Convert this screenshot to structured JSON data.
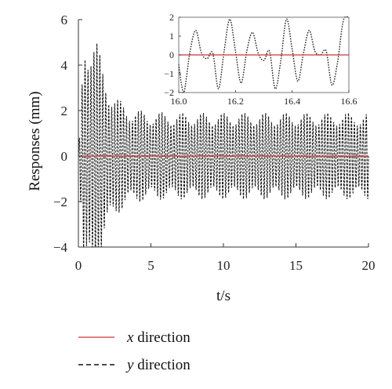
{
  "chart_data": [
    {
      "type": "line",
      "xlabel": "t/s",
      "ylabel": "Responses (mm)",
      "xlim": [
        0,
        20
      ],
      "ylim": [
        -4,
        6
      ],
      "xticks": [
        "0",
        "5",
        "10",
        "15",
        "20"
      ],
      "yticks": [
        "−4",
        "−2",
        "0",
        "2",
        "4",
        "6"
      ],
      "grid": false,
      "legend_position": "bottom-left",
      "series": [
        {
          "name": "x direction",
          "color": "#cc3333",
          "dash": "solid",
          "x": [
            0,
            20
          ],
          "y": [
            0,
            0
          ]
        },
        {
          "name": "y direction",
          "color": "#111111",
          "dash": "dashed",
          "description_values": {
            "peak_max": 5.4,
            "peak_min": -4.0,
            "steady_amplitude": 1.9,
            "steady_time_from": 3
          },
          "x": [
            0,
            0.5,
            0.6,
            0.9,
            1.0,
            1.5,
            2.0,
            2.5,
            3.0,
            20
          ],
          "y": [
            0,
            -3.8,
            5.4,
            -4.0,
            4.8,
            2.9,
            -3.0,
            2.2,
            1.9,
            1.9
          ]
        }
      ]
    },
    {
      "type": "line",
      "inset": true,
      "xlim": [
        16.0,
        16.6
      ],
      "ylim": [
        -2,
        2
      ],
      "xticks": [
        "16.0",
        "16.2",
        "16.4",
        "16.6"
      ],
      "yticks": [
        "−2",
        "−1",
        "0",
        "1",
        "2"
      ],
      "series": [
        {
          "name": "x direction",
          "color": "#cc3333",
          "dash": "solid",
          "x": [
            16.0,
            16.6
          ],
          "y": [
            0,
            0
          ]
        },
        {
          "name": "y direction",
          "color": "#222222",
          "dash": "dotted",
          "x": [
            16.0,
            16.01,
            16.02,
            16.04,
            16.06,
            16.08,
            16.1,
            16.12,
            16.14,
            16.16,
            16.18,
            16.2,
            16.22,
            16.24,
            16.26,
            16.28,
            16.3,
            16.32,
            16.34,
            16.36,
            16.38,
            16.4,
            16.42,
            16.44,
            16.46,
            16.48,
            16.5,
            16.52,
            16.54,
            16.56,
            16.58,
            16.6
          ],
          "y": [
            -0.5,
            -1.6,
            -1.9,
            0.2,
            1.3,
            0.1,
            -0.2,
            0.1,
            -1.8,
            0.2,
            1.9,
            0.2,
            -1.5,
            0.2,
            1.2,
            0.1,
            -0.3,
            0.2,
            -1.8,
            -0.3,
            1.9,
            0.3,
            -1.4,
            0.1,
            1.3,
            0.2,
            0.0,
            0.2,
            -1.6,
            -0.4,
            1.8,
            2.0
          ]
        }
      ]
    }
  ],
  "legend": {
    "items": [
      {
        "var": "x",
        "label": " direction",
        "color": "#cc3333",
        "dash": "solid"
      },
      {
        "var": "y",
        "label": " direction",
        "color": "#111111",
        "dash": "dashed"
      }
    ]
  }
}
